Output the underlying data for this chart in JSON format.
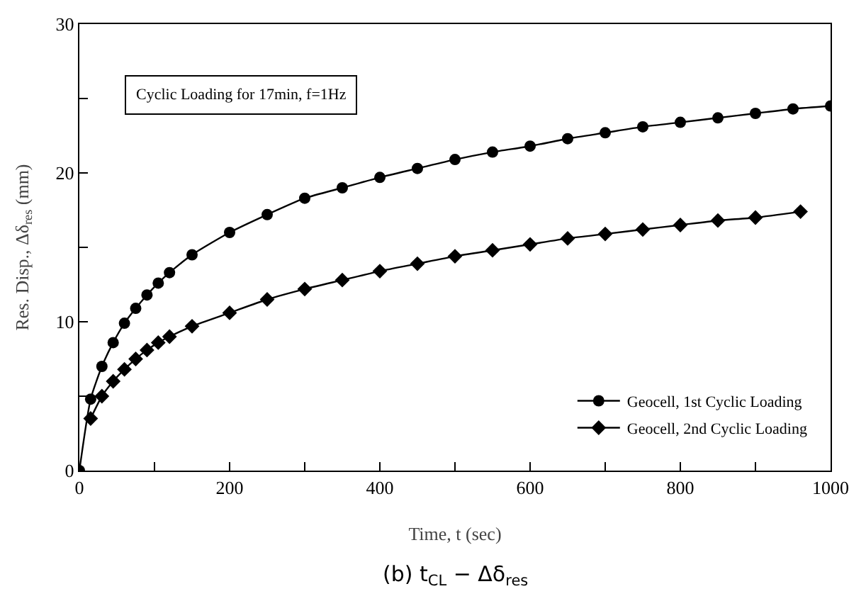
{
  "chart_data": {
    "type": "line",
    "xlabel": "Time, t (sec)",
    "ylabel": "Res. Disp., Δδ$_{res}$ (mm)",
    "xlim": [
      0,
      1000
    ],
    "ylim": [
      0,
      30
    ],
    "xticks": [
      0,
      {
        "value": 100,
        "label": null
      },
      200,
      {
        "value": 300,
        "label": null
      },
      400,
      {
        "value": 500,
        "label": null
      },
      600,
      {
        "value": 700,
        "label": null
      },
      800,
      {
        "value": 900,
        "label": null
      },
      1000
    ],
    "yticks": [
      0,
      {
        "value": 5,
        "label": null
      },
      10,
      {
        "value": 15,
        "label": null
      },
      20,
      {
        "value": 25,
        "label": null
      },
      30
    ],
    "grid": false,
    "legend": "bottom right",
    "line_style": "solid",
    "annotations": [
      "Cyclic Loading for 17min, f=1Hz",
      "(b) t$_{CL}$ − Δδ$_{res}$"
    ],
    "series": [
      {
        "name": "Geocell, 1st Cyclic Loading",
        "color": "#000000",
        "marker": "circle",
        "x": [
          0,
          15,
          30,
          45,
          60,
          75,
          90,
          105,
          120,
          150,
          200,
          250,
          300,
          350,
          400,
          450,
          500,
          550,
          600,
          650,
          700,
          750,
          800,
          850,
          900,
          950,
          1000
        ],
        "values": [
          0,
          4.8,
          7.0,
          8.6,
          9.9,
          10.9,
          11.8,
          12.6,
          13.3,
          14.5,
          16.0,
          17.2,
          18.3,
          19.0,
          19.7,
          20.3,
          20.9,
          21.4,
          21.8,
          22.3,
          22.7,
          23.1,
          23.4,
          23.7,
          24.0,
          24.3,
          24.5
        ]
      },
      {
        "name": "Geocell, 2nd Cyclic Loading",
        "color": "#000000",
        "marker": "diamond",
        "x": [
          15,
          30,
          45,
          60,
          75,
          90,
          105,
          120,
          150,
          200,
          250,
          300,
          350,
          400,
          450,
          500,
          550,
          600,
          650,
          700,
          750,
          800,
          850,
          900,
          960
        ],
        "values": [
          3.5,
          5.0,
          6.0,
          6.8,
          7.5,
          8.1,
          8.6,
          9.0,
          9.7,
          10.6,
          11.5,
          12.2,
          12.8,
          13.4,
          13.9,
          14.4,
          14.8,
          15.2,
          15.6,
          15.9,
          16.2,
          16.5,
          16.8,
          17.0,
          17.4
        ]
      }
    ]
  }
}
